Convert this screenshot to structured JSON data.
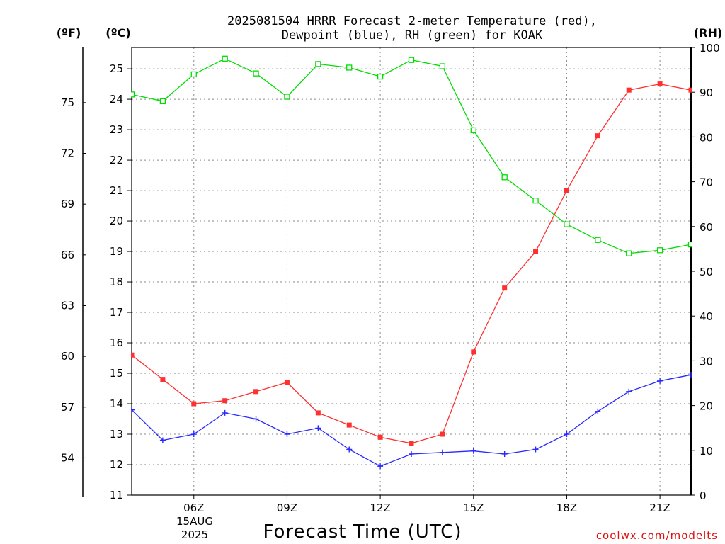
{
  "chart_data": {
    "type": "line",
    "title": [
      "2025081504 HRRR Forecast 2-meter Temperature (red),",
      "Dewpoint (blue), RH (green) for KOAK"
    ],
    "xlabel": "Forecast Time (UTC)",
    "date_label": [
      "15AUG",
      "2025"
    ],
    "unit_labels": {
      "fahrenheit": "(ºF)",
      "celsius": "(ºC)",
      "rh": "(RH)"
    },
    "x_hours": [
      4,
      5,
      6,
      7,
      8,
      9,
      10,
      11,
      12,
      13,
      14,
      15,
      16,
      17,
      18,
      19,
      20,
      21,
      22
    ],
    "xlim": [
      4,
      22
    ],
    "x_ticks": [
      {
        "hour": 6,
        "label": "06Z"
      },
      {
        "hour": 9,
        "label": "09Z"
      },
      {
        "hour": 12,
        "label": "12Z"
      },
      {
        "hour": 15,
        "label": "15Z"
      },
      {
        "hour": 18,
        "label": "18Z"
      },
      {
        "hour": 21,
        "label": "21Z"
      }
    ],
    "ylim_celsius": [
      11,
      25.7
    ],
    "yticks_celsius": [
      "11",
      "12",
      "13",
      "14",
      "15",
      "16",
      "17",
      "18",
      "19",
      "20",
      "21",
      "22",
      "23",
      "24",
      "25"
    ],
    "yticks_fahrenheit": [
      "54",
      "57",
      "60",
      "63",
      "66",
      "69",
      "72",
      "75"
    ],
    "ylim_rh": [
      0,
      100
    ],
    "yticks_rh": [
      "0",
      "10",
      "20",
      "30",
      "40",
      "50",
      "60",
      "70",
      "80",
      "90",
      "100"
    ],
    "grid": true,
    "series": [
      {
        "name": "Temperature",
        "axis": "celsius",
        "marker": "filled-square",
        "color": "#ff3030",
        "values": [
          15.6,
          14.8,
          14.0,
          14.1,
          14.4,
          14.7,
          13.7,
          13.3,
          12.9,
          12.7,
          13.0,
          15.7,
          17.8,
          19.0,
          21.0,
          22.8,
          24.3,
          24.5,
          24.3
        ]
      },
      {
        "name": "Dewpoint",
        "axis": "celsius",
        "marker": "plus",
        "color": "#2828ff",
        "values": [
          13.8,
          12.8,
          13.0,
          13.7,
          13.5,
          13.0,
          13.2,
          12.5,
          11.95,
          12.35,
          12.4,
          12.45,
          12.35,
          12.5,
          13.0,
          13.75,
          14.4,
          14.75,
          14.95
        ]
      },
      {
        "name": "RH",
        "axis": "rh",
        "marker": "open-square",
        "color": "#00dd00",
        "values": [
          89.5,
          88.0,
          94.0,
          97.5,
          94.2,
          89.0,
          96.3,
          95.5,
          93.5,
          97.2,
          95.8,
          81.5,
          71.0,
          65.8,
          60.5,
          57.0,
          54.0,
          54.7,
          56.0
        ]
      }
    ],
    "credit": "coolwx.com/modelts",
    "colors": {
      "credit": "#dd1111",
      "grid": "#8a8a8a",
      "axes": "#000000"
    }
  }
}
